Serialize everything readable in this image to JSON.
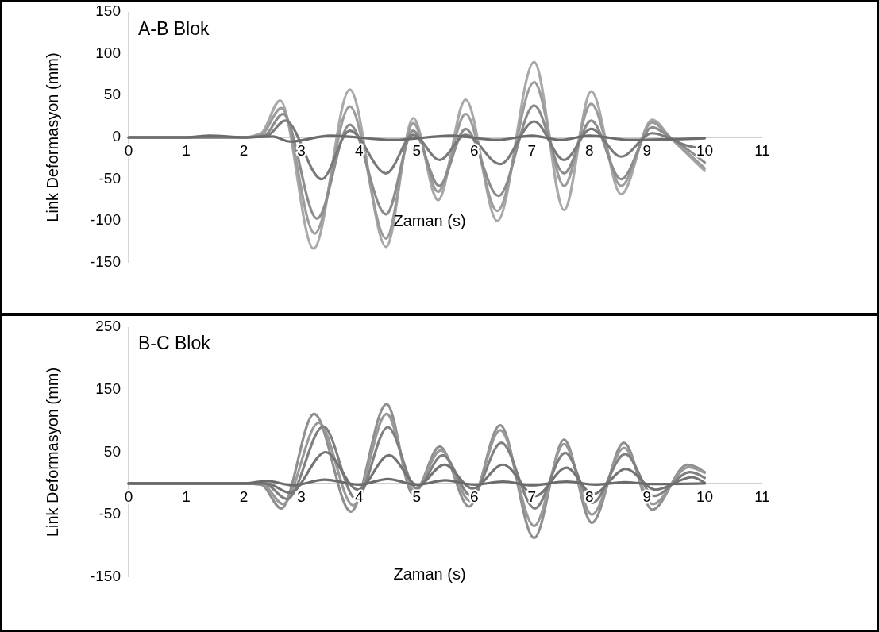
{
  "chart_data": [
    {
      "type": "line",
      "title": "A-B Blok",
      "xlabel": "Zaman (s)",
      "ylabel": "Link Deformasyon (mm)",
      "xlim": [
        0,
        11
      ],
      "xticks": [
        0,
        1,
        2,
        3,
        4,
        5,
        6,
        7,
        8,
        9,
        10,
        11
      ],
      "ylim": [
        -150,
        150
      ],
      "yticks": [
        -150,
        -100,
        -50,
        0,
        50,
        100,
        150
      ],
      "series": [
        {
          "color": "#a9a9a9",
          "x": [
            0,
            1,
            1.4,
            2,
            2.3,
            2.63,
            3.21,
            3.84,
            4.47,
            4.94,
            5.37,
            5.85,
            6.4,
            7.04,
            7.56,
            8.03,
            8.55,
            9.09,
            9.4,
            10
          ],
          "values": [
            0,
            0,
            1,
            0,
            5,
            44,
            -133,
            57,
            -131,
            23,
            -75,
            45,
            -100,
            90,
            -87,
            55,
            -68,
            21,
            0,
            -40
          ]
        },
        {
          "color": "#9c9c9c",
          "x": [
            0,
            1,
            2,
            2.3,
            2.65,
            3.23,
            3.84,
            4.47,
            4.94,
            5.37,
            5.85,
            6.4,
            7.04,
            7.56,
            8.03,
            8.55,
            9.09,
            9.4,
            10
          ],
          "values": [
            0,
            0,
            0,
            3,
            35,
            -115,
            37,
            -121,
            17,
            -65,
            28,
            -88,
            66,
            -58,
            40,
            -58,
            18,
            0,
            -37
          ]
        },
        {
          "color": "#8c8c8c",
          "x": [
            0,
            1,
            2,
            2.35,
            2.68,
            3.27,
            3.84,
            4.47,
            4.94,
            5.39,
            5.85,
            6.42,
            7.04,
            7.56,
            8.03,
            8.55,
            9.09,
            9.4,
            10
          ],
          "values": [
            0,
            0,
            0,
            2,
            28,
            -97,
            15,
            -92,
            8,
            -58,
            10,
            -70,
            38,
            -43,
            20,
            -50,
            12,
            0,
            -30
          ]
        },
        {
          "color": "#7a7a7a",
          "x": [
            0,
            1,
            2,
            2.4,
            2.72,
            3.35,
            3.84,
            4.47,
            4.94,
            5.4,
            5.85,
            6.45,
            7.04,
            7.56,
            8.03,
            8.55,
            9.09,
            9.7,
            10
          ],
          "values": [
            0,
            0,
            0,
            2,
            20,
            -50,
            8,
            -43,
            3,
            -27,
            3,
            -32,
            19,
            -27,
            10,
            -23,
            5,
            -10,
            -14
          ]
        },
        {
          "color": "#6b6b6b",
          "x": [
            0,
            1,
            1.4,
            2,
            2.5,
            2.8,
            3.5,
            4.6,
            5.6,
            6.4,
            7,
            7.5,
            8,
            8.7,
            10
          ],
          "values": [
            0,
            0,
            2,
            0,
            1,
            -5,
            2,
            -3,
            2,
            -3,
            2,
            -3,
            2,
            -3,
            -1
          ]
        }
      ]
    },
    {
      "type": "line",
      "title": "B-C Blok",
      "xlabel": "Zaman (s)",
      "ylabel": "Link Deformasyon (mm)",
      "xlim": [
        0,
        11
      ],
      "xticks": [
        0,
        1,
        2,
        3,
        4,
        5,
        6,
        7,
        8,
        9,
        10,
        11
      ],
      "ylim": [
        -150,
        250
      ],
      "yticks": [
        -150,
        -50,
        50,
        150,
        250
      ],
      "series": [
        {
          "color": "#8f8f8f",
          "x": [
            0,
            1,
            2,
            2.3,
            2.65,
            3.22,
            3.86,
            4.48,
            4.94,
            5.4,
            5.91,
            6.45,
            7.04,
            7.56,
            8.04,
            8.6,
            9.09,
            9.7,
            10
          ],
          "values": [
            0,
            0,
            0,
            -2,
            -40,
            111,
            -45,
            127,
            -18,
            59,
            -37,
            93,
            -87,
            70,
            -63,
            65,
            -42,
            30,
            18
          ]
        },
        {
          "color": "#999999",
          "x": [
            0,
            1,
            2,
            2.32,
            2.68,
            3.3,
            3.9,
            4.48,
            4.96,
            5.42,
            5.93,
            6.45,
            7.04,
            7.56,
            8.04,
            8.6,
            9.1,
            9.72,
            10
          ],
          "values": [
            0,
            0,
            0,
            -1,
            -33,
            97,
            -35,
            111,
            -12,
            53,
            -28,
            85,
            -68,
            63,
            -50,
            57,
            -33,
            26,
            17
          ]
        },
        {
          "color": "#808080",
          "x": [
            0,
            1,
            2,
            2.35,
            2.75,
            3.38,
            3.95,
            4.5,
            5,
            5.45,
            5.95,
            6.47,
            7.05,
            7.58,
            8.05,
            8.62,
            9.12,
            9.75,
            10
          ],
          "values": [
            0,
            0,
            0,
            0,
            -25,
            91,
            -25,
            90,
            -8,
            45,
            -20,
            65,
            -40,
            49,
            -31,
            47,
            -20,
            18,
            9
          ]
        },
        {
          "color": "#747474",
          "x": [
            0,
            1,
            2,
            2.4,
            2.8,
            3.42,
            3.98,
            4.52,
            5.02,
            5.48,
            5.97,
            6.5,
            7.06,
            7.6,
            8.06,
            8.63,
            9.15,
            9.78,
            10
          ],
          "values": [
            0,
            0,
            0,
            0,
            -15,
            50,
            -10,
            45,
            -3,
            30,
            -8,
            30,
            -20,
            25,
            -17,
            23,
            -10,
            10,
            1
          ]
        },
        {
          "color": "#6b6b6b",
          "x": [
            0,
            1,
            2,
            2.4,
            2.85,
            3.4,
            4,
            4.5,
            5,
            5.5,
            6,
            6.5,
            7,
            7.6,
            8.1,
            8.6,
            9.1,
            10
          ],
          "values": [
            0,
            0,
            0,
            4,
            -3,
            6,
            -2,
            7,
            -2,
            5,
            -2,
            3,
            -3,
            3,
            -2,
            2,
            -1,
            0
          ]
        }
      ]
    }
  ]
}
